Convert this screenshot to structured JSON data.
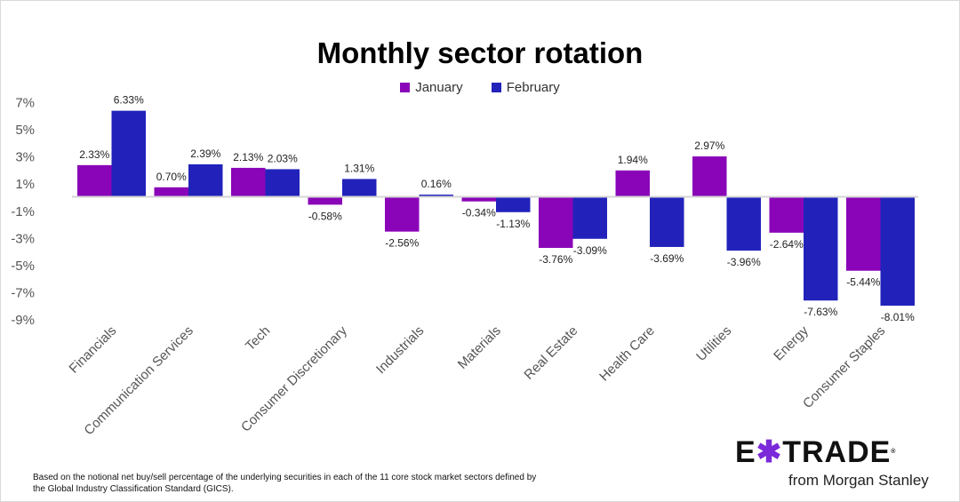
{
  "chart_data": {
    "type": "bar",
    "title": "Monthly sector rotation",
    "categories": [
      "Financials",
      "Communication Services",
      "Tech",
      "Consumer Discretionary",
      "Industrials",
      "Materials",
      "Real Estate",
      "Health Care",
      "Utilities",
      "Energy",
      "Consumer Staples"
    ],
    "series": [
      {
        "name": "January",
        "color": "#8a05b8",
        "values": [
          2.33,
          0.7,
          2.13,
          -0.58,
          -2.56,
          -0.34,
          -3.76,
          1.94,
          2.97,
          -2.64,
          -5.44
        ]
      },
      {
        "name": "February",
        "color": "#2222bb",
        "values": [
          6.33,
          2.39,
          2.03,
          1.31,
          0.16,
          -1.13,
          -3.09,
          -3.69,
          -3.96,
          -7.63,
          -8.01
        ]
      }
    ],
    "yticks": [
      "7%",
      "5%",
      "3%",
      "1%",
      "-1%",
      "-3%",
      "-5%",
      "-7%",
      "-9%"
    ],
    "ylim": [
      -9,
      7
    ],
    "legend": "top",
    "grid": false,
    "xlabel": "",
    "ylabel": ""
  },
  "footnote": "Based on the notional net buy/sell percentage of the underlying securities in each of the 11 core stock market sectors defined by the Global Industry Classification Standard (GICS).",
  "logo": {
    "brand": "E*TRADE",
    "tagline": "from Morgan Stanley"
  }
}
